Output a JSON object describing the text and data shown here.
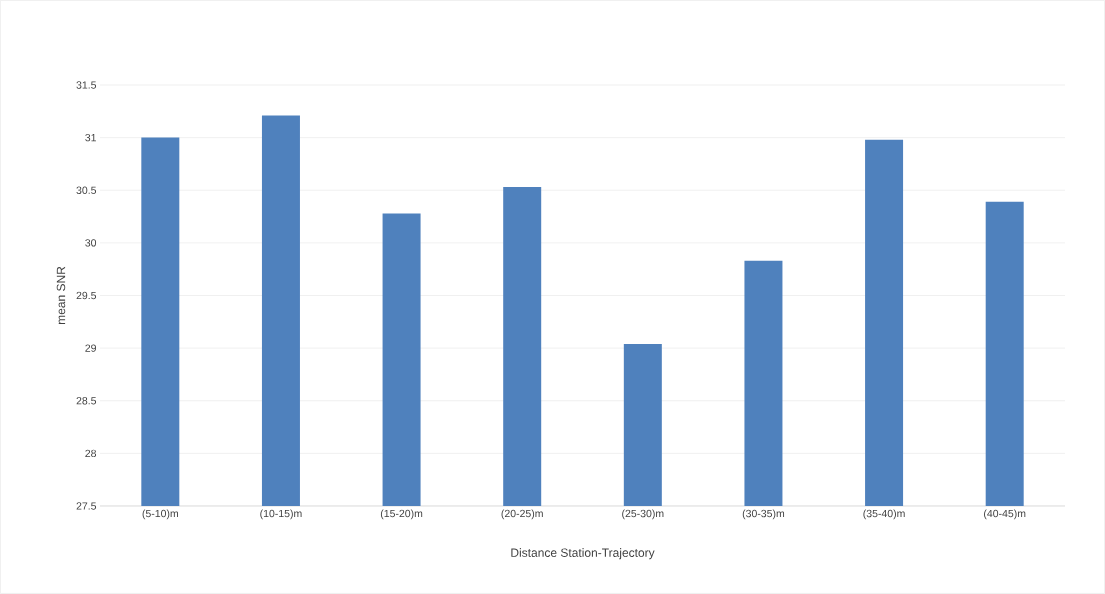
{
  "chart_data": {
    "type": "bar",
    "xlabel": "Distance Station-Trajectory",
    "ylabel": "mean SNR",
    "categories": [
      "(5-10)m",
      "(10-15)m",
      "(15-20)m",
      "(20-25)m",
      "(25-30)m",
      "(30-35)m",
      "(35-40)m",
      "(40-45)m"
    ],
    "values": [
      31.0,
      31.21,
      30.28,
      30.53,
      29.04,
      29.83,
      30.98,
      30.39
    ],
    "color": "#4f81bd",
    "ylim": [
      27.5,
      31.5
    ],
    "yticks": [
      27.5,
      28,
      28.5,
      29,
      29.5,
      30,
      30.5,
      31,
      31.5
    ],
    "grid": "y"
  }
}
